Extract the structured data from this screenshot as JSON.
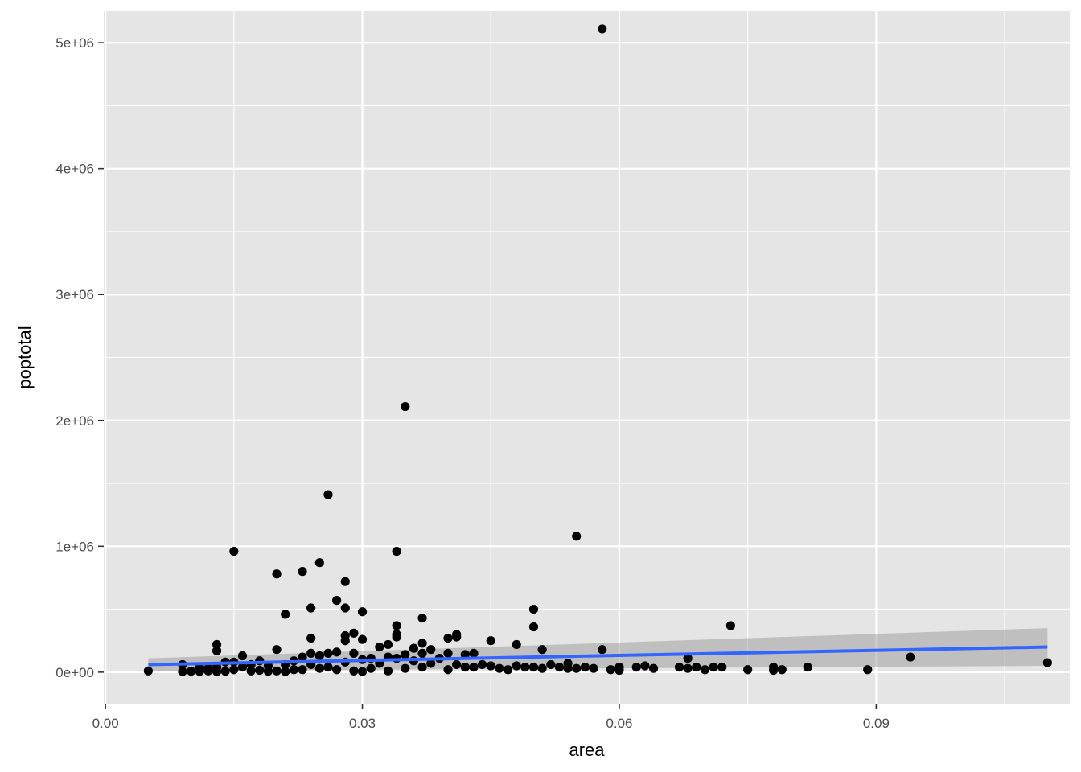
{
  "chart_data": {
    "type": "scatter",
    "xlabel": "area",
    "ylabel": "poptotal",
    "xlim": [
      -0.0002,
      0.1126
    ],
    "ylim": [
      -250000,
      5250000
    ],
    "x_ticks": [
      0.0,
      0.03,
      0.06,
      0.09
    ],
    "x_tick_labels": [
      "0.00",
      "0.03",
      "0.06",
      "0.09"
    ],
    "y_ticks": [
      0,
      1000000,
      2000000,
      3000000,
      4000000,
      5000000
    ],
    "y_tick_labels": [
      "0e+00",
      "1e+06",
      "2e+06",
      "3e+06",
      "4e+06",
      "5e+06"
    ],
    "grid": true,
    "legend": "none",
    "colors": {
      "panel": "#e5e5e5",
      "grid": "#ffffff",
      "points": "#000000",
      "smooth_line": "#3366ff",
      "confidence_band": "#999999"
    },
    "points": [
      {
        "x": 0.005,
        "y": 10000
      },
      {
        "x": 0.009,
        "y": 5000
      },
      {
        "x": 0.009,
        "y": 60000
      },
      {
        "x": 0.01,
        "y": 8000
      },
      {
        "x": 0.011,
        "y": 6000
      },
      {
        "x": 0.011,
        "y": 40000
      },
      {
        "x": 0.012,
        "y": 10000
      },
      {
        "x": 0.012,
        "y": 30000
      },
      {
        "x": 0.013,
        "y": 5000
      },
      {
        "x": 0.013,
        "y": 170000
      },
      {
        "x": 0.013,
        "y": 220000
      },
      {
        "x": 0.013,
        "y": 40000
      },
      {
        "x": 0.014,
        "y": 8000
      },
      {
        "x": 0.014,
        "y": 80000
      },
      {
        "x": 0.015,
        "y": 960000
      },
      {
        "x": 0.015,
        "y": 80000
      },
      {
        "x": 0.015,
        "y": 20000
      },
      {
        "x": 0.016,
        "y": 130000
      },
      {
        "x": 0.016,
        "y": 40000
      },
      {
        "x": 0.017,
        "y": 10000
      },
      {
        "x": 0.017,
        "y": 60000
      },
      {
        "x": 0.018,
        "y": 90000
      },
      {
        "x": 0.018,
        "y": 15000
      },
      {
        "x": 0.019,
        "y": 8000
      },
      {
        "x": 0.019,
        "y": 50000
      },
      {
        "x": 0.02,
        "y": 780000
      },
      {
        "x": 0.02,
        "y": 180000
      },
      {
        "x": 0.02,
        "y": 10000
      },
      {
        "x": 0.021,
        "y": 460000
      },
      {
        "x": 0.021,
        "y": 60000
      },
      {
        "x": 0.021,
        "y": 5000
      },
      {
        "x": 0.022,
        "y": 90000
      },
      {
        "x": 0.022,
        "y": 20000
      },
      {
        "x": 0.023,
        "y": 800000
      },
      {
        "x": 0.023,
        "y": 120000
      },
      {
        "x": 0.023,
        "y": 20000
      },
      {
        "x": 0.024,
        "y": 510000
      },
      {
        "x": 0.024,
        "y": 270000
      },
      {
        "x": 0.024,
        "y": 150000
      },
      {
        "x": 0.024,
        "y": 60000
      },
      {
        "x": 0.025,
        "y": 870000
      },
      {
        "x": 0.025,
        "y": 130000
      },
      {
        "x": 0.025,
        "y": 30000
      },
      {
        "x": 0.026,
        "y": 1410000
      },
      {
        "x": 0.026,
        "y": 150000
      },
      {
        "x": 0.026,
        "y": 40000
      },
      {
        "x": 0.027,
        "y": 570000
      },
      {
        "x": 0.027,
        "y": 160000
      },
      {
        "x": 0.027,
        "y": 20000
      },
      {
        "x": 0.028,
        "y": 720000
      },
      {
        "x": 0.028,
        "y": 510000
      },
      {
        "x": 0.028,
        "y": 290000
      },
      {
        "x": 0.028,
        "y": 250000
      },
      {
        "x": 0.028,
        "y": 80000
      },
      {
        "x": 0.029,
        "y": 310000
      },
      {
        "x": 0.029,
        "y": 150000
      },
      {
        "x": 0.029,
        "y": 10000
      },
      {
        "x": 0.03,
        "y": 480000
      },
      {
        "x": 0.03,
        "y": 260000
      },
      {
        "x": 0.03,
        "y": 100000
      },
      {
        "x": 0.03,
        "y": 5000
      },
      {
        "x": 0.031,
        "y": 110000
      },
      {
        "x": 0.031,
        "y": 30000
      },
      {
        "x": 0.032,
        "y": 200000
      },
      {
        "x": 0.032,
        "y": 70000
      },
      {
        "x": 0.033,
        "y": 220000
      },
      {
        "x": 0.033,
        "y": 120000
      },
      {
        "x": 0.033,
        "y": 10000
      },
      {
        "x": 0.034,
        "y": 960000
      },
      {
        "x": 0.034,
        "y": 370000
      },
      {
        "x": 0.034,
        "y": 300000
      },
      {
        "x": 0.034,
        "y": 280000
      },
      {
        "x": 0.034,
        "y": 110000
      },
      {
        "x": 0.035,
        "y": 2110000
      },
      {
        "x": 0.035,
        "y": 140000
      },
      {
        "x": 0.035,
        "y": 30000
      },
      {
        "x": 0.036,
        "y": 190000
      },
      {
        "x": 0.036,
        "y": 90000
      },
      {
        "x": 0.037,
        "y": 430000
      },
      {
        "x": 0.037,
        "y": 230000
      },
      {
        "x": 0.037,
        "y": 150000
      },
      {
        "x": 0.037,
        "y": 40000
      },
      {
        "x": 0.038,
        "y": 180000
      },
      {
        "x": 0.038,
        "y": 70000
      },
      {
        "x": 0.039,
        "y": 110000
      },
      {
        "x": 0.04,
        "y": 270000
      },
      {
        "x": 0.04,
        "y": 150000
      },
      {
        "x": 0.04,
        "y": 20000
      },
      {
        "x": 0.041,
        "y": 300000
      },
      {
        "x": 0.041,
        "y": 280000
      },
      {
        "x": 0.041,
        "y": 60000
      },
      {
        "x": 0.042,
        "y": 140000
      },
      {
        "x": 0.042,
        "y": 40000
      },
      {
        "x": 0.043,
        "y": 150000
      },
      {
        "x": 0.043,
        "y": 40000
      },
      {
        "x": 0.044,
        "y": 60000
      },
      {
        "x": 0.045,
        "y": 250000
      },
      {
        "x": 0.045,
        "y": 50000
      },
      {
        "x": 0.046,
        "y": 30000
      },
      {
        "x": 0.047,
        "y": 20000
      },
      {
        "x": 0.048,
        "y": 220000
      },
      {
        "x": 0.048,
        "y": 50000
      },
      {
        "x": 0.049,
        "y": 40000
      },
      {
        "x": 0.05,
        "y": 500000
      },
      {
        "x": 0.05,
        "y": 360000
      },
      {
        "x": 0.05,
        "y": 40000
      },
      {
        "x": 0.051,
        "y": 180000
      },
      {
        "x": 0.051,
        "y": 30000
      },
      {
        "x": 0.052,
        "y": 60000
      },
      {
        "x": 0.053,
        "y": 40000
      },
      {
        "x": 0.054,
        "y": 70000
      },
      {
        "x": 0.054,
        "y": 30000
      },
      {
        "x": 0.055,
        "y": 1080000
      },
      {
        "x": 0.055,
        "y": 30000
      },
      {
        "x": 0.056,
        "y": 40000
      },
      {
        "x": 0.057,
        "y": 30000
      },
      {
        "x": 0.058,
        "y": 5110000
      },
      {
        "x": 0.058,
        "y": 180000
      },
      {
        "x": 0.059,
        "y": 20000
      },
      {
        "x": 0.06,
        "y": 40000
      },
      {
        "x": 0.06,
        "y": 15000
      },
      {
        "x": 0.062,
        "y": 40000
      },
      {
        "x": 0.063,
        "y": 50000
      },
      {
        "x": 0.064,
        "y": 30000
      },
      {
        "x": 0.067,
        "y": 40000
      },
      {
        "x": 0.068,
        "y": 110000
      },
      {
        "x": 0.068,
        "y": 30000
      },
      {
        "x": 0.069,
        "y": 40000
      },
      {
        "x": 0.07,
        "y": 20000
      },
      {
        "x": 0.071,
        "y": 40000
      },
      {
        "x": 0.072,
        "y": 40000
      },
      {
        "x": 0.073,
        "y": 370000
      },
      {
        "x": 0.075,
        "y": 20000
      },
      {
        "x": 0.078,
        "y": 40000
      },
      {
        "x": 0.078,
        "y": 15000
      },
      {
        "x": 0.079,
        "y": 20000
      },
      {
        "x": 0.082,
        "y": 40000
      },
      {
        "x": 0.089,
        "y": 20000
      },
      {
        "x": 0.094,
        "y": 120000
      },
      {
        "x": 0.11,
        "y": 75000
      }
    ],
    "smooth": {
      "method": "linear",
      "x": [
        0.005,
        0.11
      ],
      "y": [
        60000,
        200000
      ],
      "band_lower": [
        10000,
        50000
      ],
      "band_upper": [
        110000,
        350000
      ]
    }
  }
}
